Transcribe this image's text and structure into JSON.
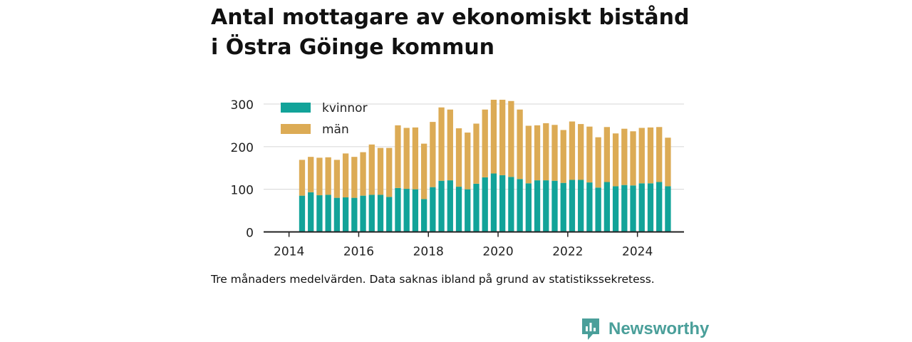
{
  "chart_title_line1": "Antal mottagare av ekonomiskt bistånd",
  "chart_title_line2": "i Östra Göinge kommun",
  "caption": "Tre månaders medelvärden. Data saknas ibland på grund av statistikssekretess.",
  "brand": {
    "name": "Newsworthy",
    "icon": "newsworthy-logo-icon",
    "color": "#4a9f9a"
  },
  "colors": {
    "kvinnor": "#12a399",
    "man": "#dcab55",
    "grid": "#d6d6d6",
    "axis": "#222222"
  },
  "chart_data": {
    "type": "bar",
    "stacked": true,
    "x_unit": "quarter",
    "x": [
      "2014-Q2",
      "2014-Q3",
      "2014-Q4",
      "2015-Q1",
      "2015-Q2",
      "2015-Q3",
      "2015-Q4",
      "2016-Q1",
      "2016-Q2",
      "2016-Q3",
      "2016-Q4",
      "2017-Q1",
      "2017-Q2",
      "2017-Q3",
      "2017-Q4",
      "2018-Q1",
      "2018-Q2",
      "2018-Q3",
      "2018-Q4",
      "2019-Q1",
      "2019-Q2",
      "2019-Q3",
      "2019-Q4",
      "2020-Q1",
      "2020-Q2",
      "2020-Q3",
      "2020-Q4",
      "2021-Q1",
      "2021-Q2",
      "2021-Q3",
      "2021-Q4",
      "2022-Q1",
      "2022-Q2",
      "2022-Q3",
      "2022-Q4",
      "2023-Q1",
      "2023-Q2",
      "2023-Q3",
      "2023-Q4",
      "2024-Q1",
      "2024-Q2",
      "2024-Q3",
      "2024-Q4"
    ],
    "series": [
      {
        "name": "kvinnor",
        "values": [
          85,
          93,
          86,
          87,
          80,
          81,
          80,
          85,
          87,
          87,
          82,
          103,
          101,
          100,
          77,
          105,
          120,
          121,
          106,
          100,
          113,
          128,
          137,
          133,
          129,
          124,
          114,
          121,
          121,
          120,
          115,
          122,
          122,
          116,
          104,
          117,
          107,
          110,
          109,
          114,
          114,
          117,
          107
        ]
      },
      {
        "name": "män",
        "values": [
          84,
          83,
          88,
          88,
          89,
          103,
          96,
          102,
          118,
          110,
          115,
          147,
          143,
          145,
          130,
          153,
          172,
          166,
          137,
          133,
          141,
          159,
          173,
          177,
          178,
          163,
          135,
          129,
          134,
          131,
          124,
          137,
          131,
          131,
          118,
          129,
          124,
          132,
          127,
          130,
          131,
          129,
          114
        ]
      }
    ],
    "legend": [
      "kvinnor",
      "män"
    ],
    "legend_position": "top-left",
    "x_ticks": [
      "2014",
      "2016",
      "2018",
      "2020",
      "2022",
      "2024"
    ],
    "y_ticks": [
      0,
      100,
      200,
      300
    ],
    "ylim": [
      0,
      320
    ],
    "grid": true
  }
}
